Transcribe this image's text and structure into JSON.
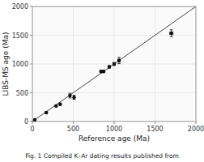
{
  "chart_data": {
    "type": "scatter",
    "title": "",
    "xlabel": "Reference age (Ma)",
    "ylabel": "LIBS-MS age (Ma)",
    "caption": "Fig. 1 Compiled K–Ar dating results published from",
    "xlim": [
      0,
      2000
    ],
    "ylim": [
      0,
      2000
    ],
    "xticks": [
      0,
      500,
      1000,
      1500,
      2000
    ],
    "yticks": [
      0,
      500,
      1000,
      1500,
      2000
    ],
    "grid": true,
    "ref_line": [
      0,
      2000
    ],
    "series": [
      {
        "color": "#111111",
        "marker": "circle",
        "x": [
          30,
          170,
          290,
          340,
          460,
          510,
          840,
          870,
          940,
          1000,
          1060,
          1700
        ],
        "values": [
          30,
          155,
          270,
          300,
          450,
          420,
          870,
          870,
          950,
          1000,
          1060,
          1535
        ],
        "xerr": [
          5,
          8,
          8,
          8,
          10,
          10,
          12,
          12,
          12,
          15,
          15,
          20
        ],
        "yerr": [
          10,
          12,
          12,
          12,
          40,
          35,
          18,
          18,
          20,
          25,
          55,
          60
        ]
      }
    ]
  }
}
